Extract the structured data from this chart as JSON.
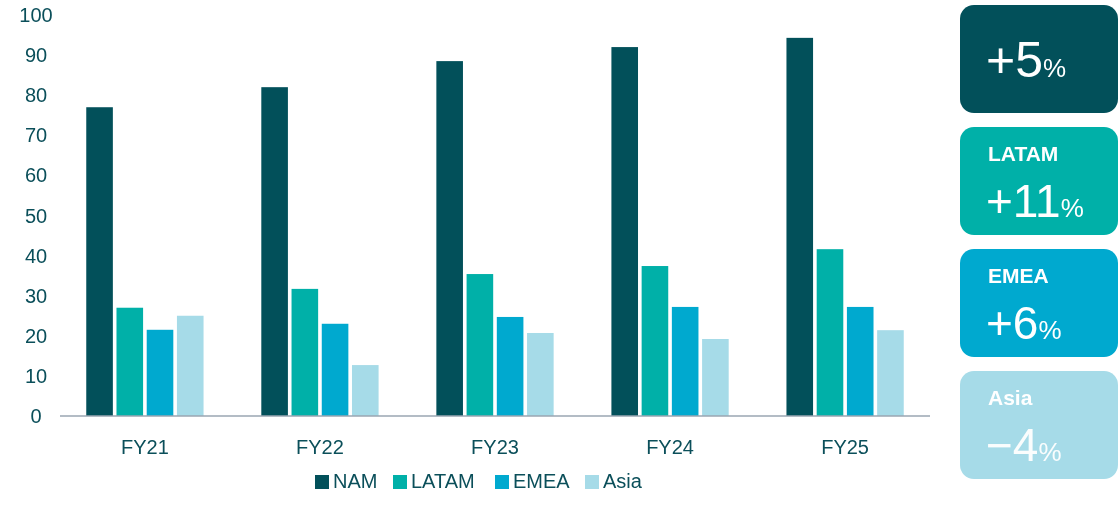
{
  "chart_data": {
    "type": "bar",
    "categories": [
      "FY21",
      "FY22",
      "FY23",
      "FY24",
      "FY25"
    ],
    "series": [
      {
        "name": "NAM",
        "color": "#02505a",
        "values": [
          77,
          82,
          88.5,
          92,
          94.3
        ]
      },
      {
        "name": "LATAM",
        "color": "#00b0a8",
        "values": [
          27,
          31.7,
          35.4,
          37.4,
          41.6
        ]
      },
      {
        "name": "EMEA",
        "color": "#00a9cf",
        "values": [
          21.5,
          23,
          24.7,
          27.2,
          27.2
        ]
      },
      {
        "name": "Asia",
        "color": "#a6dbe8",
        "values": [
          25,
          12.7,
          20.7,
          19.2,
          21.4
        ]
      }
    ],
    "ylim": [
      0,
      100
    ],
    "yticks": [
      0,
      10,
      20,
      30,
      40,
      50,
      60,
      70,
      80,
      90,
      100
    ],
    "grid": false,
    "legend": "bottom",
    "annotations": [
      "+5%",
      "LATAM +11%",
      "EMEA +6%",
      "Asia −4%"
    ]
  }
}
